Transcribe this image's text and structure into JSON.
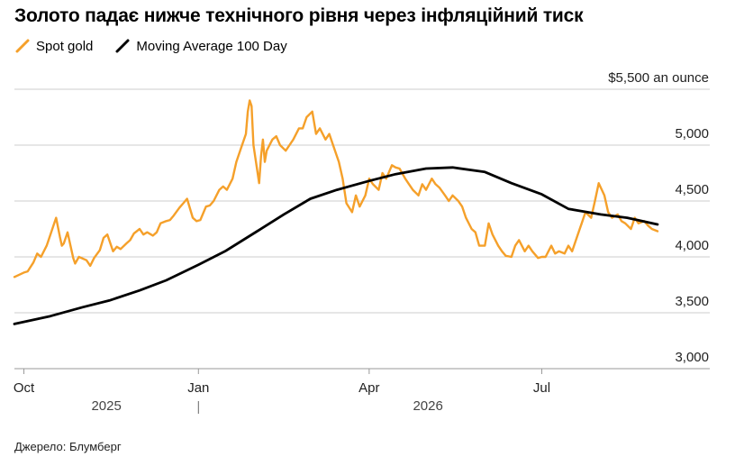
{
  "title": "Золото падає нижче технічного рівня через інфляційний тиск",
  "source": "Джерело: Блумберг",
  "colors": {
    "spot": "#f5a02a",
    "ma": "#000000",
    "grid": "#cccccc",
    "axis": "#999999"
  },
  "chart_data": {
    "type": "line",
    "title": "Золото падає нижче технічного рівня через інфляційний тиск",
    "y_unit_label": "$5,500 an ounce",
    "ylim": [
      3000,
      5500
    ],
    "y_ticks": [
      {
        "value": 5500,
        "label": "$5,500 an ounce"
      },
      {
        "value": 5000,
        "label": "5,000"
      },
      {
        "value": 4500,
        "label": "4,500"
      },
      {
        "value": 4000,
        "label": "4,000"
      },
      {
        "value": 3500,
        "label": "3,500"
      },
      {
        "value": 3000,
        "label": "3,000"
      }
    ],
    "x_range": [
      "2025-09-26",
      "2026-08-31"
    ],
    "x_ticks": [
      {
        "date": "2025-10-01",
        "label": "Oct"
      },
      {
        "date": "2026-01-01",
        "label": "Jan"
      },
      {
        "date": "2026-04-01",
        "label": "Apr"
      },
      {
        "date": "2026-07-01",
        "label": "Jul"
      }
    ],
    "year_labels": [
      {
        "date": "2025-11-15",
        "label": "2025"
      },
      {
        "date": "2026-04-48",
        "label": "2026"
      }
    ],
    "year_divider": "2026-01-01",
    "grid": true,
    "legend_position": "top-left",
    "series": [
      {
        "name": "Spot gold",
        "color": "#f5a02a",
        "points": [
          [
            "2025-09-26",
            3820
          ],
          [
            "2025-10-01",
            3860
          ],
          [
            "2025-10-03",
            3870
          ],
          [
            "2025-10-06",
            3950
          ],
          [
            "2025-10-08",
            4030
          ],
          [
            "2025-10-10",
            4000
          ],
          [
            "2025-10-13",
            4100
          ],
          [
            "2025-10-15",
            4200
          ],
          [
            "2025-10-17",
            4300
          ],
          [
            "2025-10-18",
            4350
          ],
          [
            "2025-10-20",
            4180
          ],
          [
            "2025-10-21",
            4100
          ],
          [
            "2025-10-22",
            4120
          ],
          [
            "2025-10-24",
            4220
          ],
          [
            "2025-10-27",
            3990
          ],
          [
            "2025-10-28",
            3940
          ],
          [
            "2025-10-30",
            4000
          ],
          [
            "2025-11-03",
            3970
          ],
          [
            "2025-11-05",
            3920
          ],
          [
            "2025-11-07",
            3990
          ],
          [
            "2025-11-10",
            4060
          ],
          [
            "2025-11-12",
            4170
          ],
          [
            "2025-11-14",
            4200
          ],
          [
            "2025-11-17",
            4050
          ],
          [
            "2025-11-19",
            4090
          ],
          [
            "2025-11-21",
            4070
          ],
          [
            "2025-11-24",
            4120
          ],
          [
            "2025-11-26",
            4150
          ],
          [
            "2025-11-28",
            4210
          ],
          [
            "2025-12-01",
            4250
          ],
          [
            "2025-12-03",
            4200
          ],
          [
            "2025-12-05",
            4220
          ],
          [
            "2025-12-08",
            4190
          ],
          [
            "2025-12-10",
            4220
          ],
          [
            "2025-12-12",
            4300
          ],
          [
            "2025-12-15",
            4320
          ],
          [
            "2025-12-17",
            4330
          ],
          [
            "2025-12-19",
            4370
          ],
          [
            "2025-12-22",
            4440
          ],
          [
            "2025-12-24",
            4480
          ],
          [
            "2025-12-26",
            4520
          ],
          [
            "2025-12-29",
            4350
          ],
          [
            "2025-12-31",
            4320
          ],
          [
            "2026-01-02",
            4330
          ],
          [
            "2026-01-05",
            4450
          ],
          [
            "2026-01-07",
            4460
          ],
          [
            "2026-01-09",
            4500
          ],
          [
            "2026-01-12",
            4600
          ],
          [
            "2026-01-14",
            4630
          ],
          [
            "2026-01-16",
            4600
          ],
          [
            "2026-01-19",
            4700
          ],
          [
            "2026-01-21",
            4850
          ],
          [
            "2026-01-23",
            4950
          ],
          [
            "2026-01-26",
            5100
          ],
          [
            "2026-01-27",
            5300
          ],
          [
            "2026-01-28",
            5400
          ],
          [
            "2026-01-29",
            5350
          ],
          [
            "2026-01-30",
            5000
          ],
          [
            "2026-02-02",
            4660
          ],
          [
            "2026-02-03",
            4900
          ],
          [
            "2026-02-04",
            5050
          ],
          [
            "2026-02-05",
            4850
          ],
          [
            "2026-02-06",
            4950
          ],
          [
            "2026-02-09",
            5050
          ],
          [
            "2026-02-11",
            5080
          ],
          [
            "2026-02-13",
            5000
          ],
          [
            "2026-02-16",
            4950
          ],
          [
            "2026-02-18",
            5000
          ],
          [
            "2026-02-20",
            5050
          ],
          [
            "2026-02-23",
            5150
          ],
          [
            "2026-02-25",
            5150
          ],
          [
            "2026-02-27",
            5250
          ],
          [
            "2026-03-02",
            5300
          ],
          [
            "2026-03-04",
            5100
          ],
          [
            "2026-03-06",
            5150
          ],
          [
            "2026-03-09",
            5050
          ],
          [
            "2026-03-11",
            5100
          ],
          [
            "2026-03-13",
            5000
          ],
          [
            "2026-03-16",
            4850
          ],
          [
            "2026-03-18",
            4700
          ],
          [
            "2026-03-20",
            4480
          ],
          [
            "2026-03-23",
            4400
          ],
          [
            "2026-03-25",
            4550
          ],
          [
            "2026-03-27",
            4450
          ],
          [
            "2026-03-30",
            4550
          ],
          [
            "2026-04-01",
            4700
          ],
          [
            "2026-04-03",
            4650
          ],
          [
            "2026-04-06",
            4600
          ],
          [
            "2026-04-08",
            4750
          ],
          [
            "2026-04-10",
            4700
          ],
          [
            "2026-04-13",
            4820
          ],
          [
            "2026-04-15",
            4800
          ],
          [
            "2026-04-17",
            4790
          ],
          [
            "2026-04-20",
            4700
          ],
          [
            "2026-04-22",
            4650
          ],
          [
            "2026-04-24",
            4600
          ],
          [
            "2026-04-27",
            4550
          ],
          [
            "2026-04-29",
            4650
          ],
          [
            "2026-05-01",
            4600
          ],
          [
            "2026-05-04",
            4700
          ],
          [
            "2026-05-06",
            4650
          ],
          [
            "2026-05-08",
            4620
          ],
          [
            "2026-05-11",
            4550
          ],
          [
            "2026-05-13",
            4500
          ],
          [
            "2026-05-15",
            4550
          ],
          [
            "2026-05-18",
            4500
          ],
          [
            "2026-05-20",
            4450
          ],
          [
            "2026-05-22",
            4350
          ],
          [
            "2026-05-25",
            4250
          ],
          [
            "2026-05-27",
            4220
          ],
          [
            "2026-05-29",
            4100
          ],
          [
            "2026-06-01",
            4100
          ],
          [
            "2026-06-03",
            4300
          ],
          [
            "2026-06-05",
            4200
          ],
          [
            "2026-06-08",
            4100
          ],
          [
            "2026-06-10",
            4050
          ],
          [
            "2026-06-12",
            4010
          ],
          [
            "2026-06-15",
            4000
          ],
          [
            "2026-06-17",
            4100
          ],
          [
            "2026-06-19",
            4150
          ],
          [
            "2026-06-22",
            4050
          ],
          [
            "2026-06-24",
            4100
          ],
          [
            "2026-06-26",
            4050
          ],
          [
            "2026-06-29",
            3990
          ],
          [
            "2026-07-01",
            4000
          ],
          [
            "2026-07-03",
            4000
          ],
          [
            "2026-07-06",
            4100
          ],
          [
            "2026-07-08",
            4030
          ],
          [
            "2026-07-10",
            4050
          ],
          [
            "2026-07-13",
            4030
          ],
          [
            "2026-07-15",
            4100
          ],
          [
            "2026-07-17",
            4050
          ],
          [
            "2026-07-20",
            4200
          ],
          [
            "2026-07-22",
            4300
          ],
          [
            "2026-07-24",
            4400
          ],
          [
            "2026-07-27",
            4350
          ],
          [
            "2026-07-29",
            4500
          ],
          [
            "2026-07-31",
            4660
          ],
          [
            "2026-08-03",
            4550
          ],
          [
            "2026-08-05",
            4400
          ],
          [
            "2026-08-07",
            4350
          ],
          [
            "2026-08-10",
            4380
          ],
          [
            "2026-08-12",
            4320
          ],
          [
            "2026-08-14",
            4300
          ],
          [
            "2026-08-17",
            4250
          ],
          [
            "2026-08-19",
            4350
          ],
          [
            "2026-08-21",
            4300
          ],
          [
            "2026-08-24",
            4320
          ],
          [
            "2026-08-26",
            4280
          ],
          [
            "2026-08-28",
            4250
          ],
          [
            "2026-08-31",
            4230
          ]
        ]
      },
      {
        "name": "Moving Average 100 Day",
        "color": "#000000",
        "points": [
          [
            "2025-09-26",
            3400
          ],
          [
            "2025-10-15",
            3470
          ],
          [
            "2025-11-01",
            3550
          ],
          [
            "2025-11-15",
            3610
          ],
          [
            "2025-12-01",
            3700
          ],
          [
            "2025-12-15",
            3790
          ],
          [
            "2026-01-01",
            3930
          ],
          [
            "2026-01-15",
            4050
          ],
          [
            "2026-02-01",
            4230
          ],
          [
            "2026-02-15",
            4380
          ],
          [
            "2026-03-01",
            4520
          ],
          [
            "2026-03-15",
            4600
          ],
          [
            "2026-04-01",
            4680
          ],
          [
            "2026-04-15",
            4740
          ],
          [
            "2026-05-01",
            4790
          ],
          [
            "2026-05-15",
            4800
          ],
          [
            "2026-06-01",
            4760
          ],
          [
            "2026-06-15",
            4660
          ],
          [
            "2026-07-01",
            4560
          ],
          [
            "2026-07-15",
            4430
          ],
          [
            "2026-08-01",
            4380
          ],
          [
            "2026-08-15",
            4350
          ],
          [
            "2026-08-31",
            4290
          ]
        ]
      }
    ]
  }
}
